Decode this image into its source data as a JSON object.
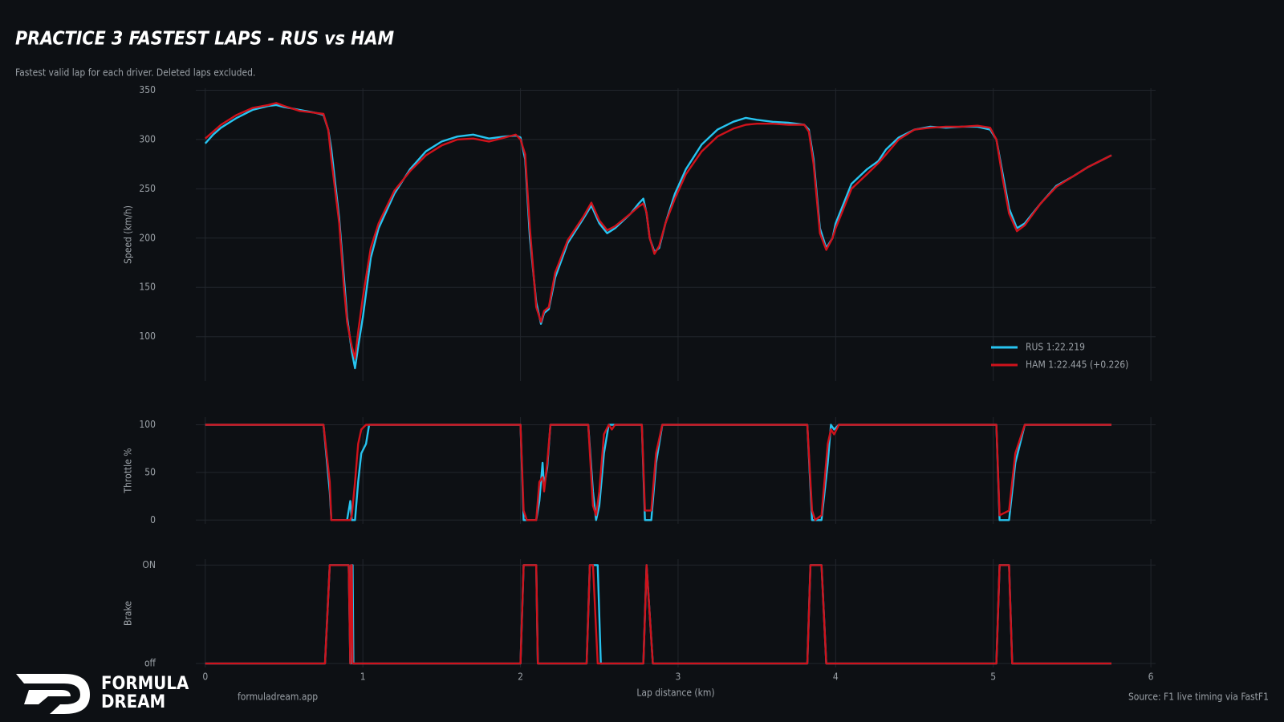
{
  "header": {
    "title": "PRACTICE 3 FASTEST LAPS  -  RUS vs HAM",
    "subtitle": "Fastest valid lap for each driver. Deleted laps excluded."
  },
  "footer": {
    "logo_line1": "FORMULA",
    "logo_line2": "DREAM",
    "site": "formuladream.app",
    "source": "Source: F1 live timing via FastF1"
  },
  "chart_data": [
    {
      "type": "line",
      "ylabel": "Speed (km/h)",
      "xlim": [
        -0.06,
        6.03
      ],
      "ylim": [
        55,
        352
      ],
      "xticks": [
        0,
        1,
        2,
        3,
        4,
        5,
        6
      ],
      "yticks": [
        100,
        150,
        200,
        250,
        300,
        350
      ],
      "grid": true,
      "legend": "lower right",
      "x": [
        0,
        0.05,
        0.1,
        0.2,
        0.3,
        0.4,
        0.45,
        0.5,
        0.6,
        0.7,
        0.75,
        0.78,
        0.8,
        0.85,
        0.88,
        0.9,
        0.93,
        0.95,
        0.97,
        1.0,
        1.05,
        1.1,
        1.2,
        1.3,
        1.4,
        1.5,
        1.6,
        1.7,
        1.8,
        1.9,
        1.97,
        2.0,
        2.03,
        2.06,
        2.1,
        2.13,
        2.15,
        2.18,
        2.22,
        2.3,
        2.4,
        2.45,
        2.5,
        2.55,
        2.6,
        2.7,
        2.75,
        2.78,
        2.8,
        2.82,
        2.85,
        2.88,
        2.92,
        2.98,
        3.05,
        3.15,
        3.25,
        3.35,
        3.43,
        3.5,
        3.6,
        3.7,
        3.8,
        3.83,
        3.86,
        3.9,
        3.94,
        3.98,
        4.0,
        4.05,
        4.1,
        4.2,
        4.27,
        4.32,
        4.4,
        4.5,
        4.6,
        4.7,
        4.8,
        4.9,
        4.98,
        5.02,
        5.06,
        5.1,
        5.15,
        5.2,
        5.3,
        5.4,
        5.5,
        5.6,
        5.7,
        5.75
      ],
      "series": [
        {
          "name": "RUS  1:22.219",
          "color": "#27c4f0",
          "values": [
            296,
            305,
            312,
            322,
            330,
            334,
            335,
            333,
            330,
            327,
            325,
            310,
            290,
            220,
            160,
            120,
            85,
            68,
            90,
            120,
            180,
            210,
            245,
            270,
            288,
            298,
            303,
            305,
            301,
            303,
            304,
            302,
            280,
            200,
            135,
            113,
            124,
            128,
            160,
            195,
            220,
            233,
            215,
            205,
            210,
            225,
            235,
            240,
            225,
            200,
            186,
            190,
            215,
            245,
            270,
            295,
            310,
            318,
            322,
            320,
            318,
            317,
            315,
            310,
            280,
            210,
            190,
            200,
            215,
            235,
            255,
            270,
            278,
            290,
            302,
            310,
            313,
            312,
            313,
            313,
            310,
            300,
            265,
            230,
            210,
            215,
            235,
            253,
            262,
            272,
            280,
            284
          ]
        },
        {
          "name": "HAM  1:22.445  (+0.226)",
          "color": "#d0121b",
          "values": [
            301,
            308,
            315,
            325,
            332,
            335,
            337,
            334,
            329,
            327,
            326,
            310,
            280,
            215,
            150,
            115,
            90,
            78,
            105,
            140,
            190,
            215,
            248,
            268,
            284,
            294,
            300,
            301,
            298,
            302,
            305,
            300,
            285,
            210,
            130,
            115,
            126,
            130,
            165,
            198,
            222,
            236,
            218,
            208,
            212,
            225,
            232,
            235,
            226,
            200,
            184,
            192,
            215,
            240,
            265,
            288,
            303,
            311,
            315,
            316,
            316,
            315,
            315,
            308,
            275,
            205,
            188,
            200,
            210,
            230,
            250,
            265,
            276,
            285,
            300,
            310,
            312,
            313,
            313,
            314,
            312,
            300,
            260,
            225,
            207,
            213,
            235,
            252,
            262,
            272,
            280,
            284
          ]
        }
      ]
    },
    {
      "type": "line",
      "ylabel": "Throttle %",
      "xlim": [
        -0.06,
        6.03
      ],
      "ylim": [
        -4,
        108
      ],
      "xticks": [
        0,
        1,
        2,
        3,
        4,
        5,
        6
      ],
      "yticks": [
        0,
        50,
        100
      ],
      "grid": true,
      "x": [
        0,
        0.75,
        0.79,
        0.8,
        0.9,
        0.92,
        0.93,
        0.95,
        0.97,
        0.99,
        1.02,
        1.04,
        2.0,
        2.02,
        2.04,
        2.1,
        2.12,
        2.14,
        2.15,
        2.17,
        2.19,
        2.43,
        2.46,
        2.48,
        2.5,
        2.53,
        2.56,
        2.58,
        2.6,
        2.77,
        2.79,
        2.83,
        2.86,
        2.9,
        3.82,
        3.85,
        3.87,
        3.91,
        3.95,
        3.97,
        3.99,
        4.02,
        5.02,
        5.04,
        5.1,
        5.14,
        5.2,
        5.75
      ],
      "series": [
        {
          "color": "#27c4f0",
          "values": [
            100,
            100,
            30,
            0,
            0,
            20,
            0,
            0,
            40,
            70,
            80,
            100,
            100,
            0,
            0,
            0,
            20,
            60,
            35,
            55,
            100,
            100,
            30,
            0,
            15,
            70,
            100,
            100,
            100,
            100,
            0,
            0,
            60,
            100,
            100,
            0,
            0,
            0,
            60,
            100,
            95,
            100,
            100,
            0,
            0,
            60,
            100,
            100
          ]
        },
        {
          "color": "#d0121b",
          "values": [
            100,
            100,
            40,
            0,
            0,
            0,
            5,
            40,
            80,
            95,
            100,
            100,
            100,
            10,
            0,
            0,
            40,
            45,
            30,
            60,
            100,
            100,
            15,
            5,
            30,
            90,
            100,
            95,
            100,
            100,
            10,
            10,
            70,
            100,
            100,
            10,
            0,
            5,
            80,
            95,
            90,
            100,
            100,
            5,
            10,
            70,
            100,
            100
          ]
        }
      ]
    },
    {
      "type": "line",
      "ylabel": "Brake",
      "xlabel": "Lap distance (km)",
      "xlim": [
        -0.06,
        6.03
      ],
      "ylim": [
        -0.04,
        1.06
      ],
      "xticks": [
        0,
        1,
        2,
        3,
        4,
        5,
        6
      ],
      "yticks": [
        {
          "value": 0,
          "label": "off"
        },
        {
          "value": 1,
          "label": "ON"
        }
      ],
      "grid": true,
      "x": [
        0,
        0.76,
        0.79,
        0.91,
        0.92,
        0.925,
        0.93,
        0.935,
        0.94,
        2.0,
        2.02,
        2.1,
        2.11,
        2.42,
        2.44,
        2.46,
        2.49,
        2.51,
        2.78,
        2.8,
        2.84,
        3.82,
        3.84,
        3.91,
        3.94,
        5.02,
        5.04,
        5.1,
        5.12,
        5.75
      ],
      "series": [
        {
          "color": "#27c4f0",
          "values": [
            0,
            0,
            1,
            1,
            0,
            1,
            0,
            1,
            0,
            0,
            1,
            1,
            0,
            0,
            1,
            1,
            1,
            0,
            0,
            1,
            0,
            0,
            1,
            1,
            0,
            0,
            1,
            1,
            0,
            0
          ]
        },
        {
          "color": "#d0121b",
          "values": [
            0,
            0,
            1,
            1,
            0,
            1,
            1,
            0,
            0,
            0,
            1,
            1,
            0,
            0,
            1,
            1,
            0,
            0,
            0,
            1,
            0,
            0,
            1,
            1,
            0,
            0,
            1,
            1,
            0,
            0
          ]
        }
      ]
    }
  ]
}
